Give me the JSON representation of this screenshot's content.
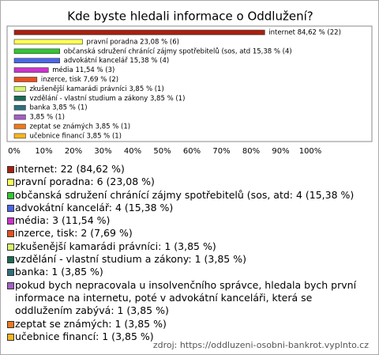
{
  "chart_data": {
    "type": "bar",
    "orientation": "horizontal",
    "title": "Kde byste hledali informace o Oddlužení?",
    "values": [
      84.62,
      23.08,
      15.38,
      15.38,
      11.54,
      7.69,
      3.85,
      3.85,
      3.85,
      3.85,
      3.85,
      3.85
    ],
    "value_labels": [
      "internet 84,62 % (22)",
      "pravní poradna 23,08 % (6)",
      "občanská sdružení chránící zájmy spotřebitelů (sos, atd 15,38 % (4)",
      "advokátní kancelář 15,38 % (4)",
      "média 11,54 % (3)",
      "inzerce, tisk 7,69 % (2)",
      "zkušenější kamarádi právníci 3,85 % (1)",
      "vzdělání - vlastní studium a zákony 3,85 % (1)",
      "banka 3,85 % (1)",
      "3,85 % (1)",
      "zeptat se známých 3,85 % (1)",
      "učebnice financí 3,85 % (1)"
    ],
    "colors": [
      "#a8210f",
      "#ffff55",
      "#33c633",
      "#4a66e8",
      "#cc33cc",
      "#e8501e",
      "#d6f56a",
      "#1a6b55",
      "#2f6f80",
      "#a45fc6",
      "#ee7a1e",
      "#f5b522"
    ],
    "legend_labels": [
      "internet: 22 (84,62 %)",
      "pravní poradna: 6 (23,08 %)",
      "občanská sdružení chránící zájmy spotřebitelů (sos, atd: 4 (15,38 %)",
      "advokátní kancelář: 4 (15,38 %)",
      "média: 3 (11,54 %)",
      "inzerce, tisk: 2 (7,69 %)",
      "zkušenější kamarádi právníci: 1 (3,85 %)",
      "vzdělání - vlastní studium a zákony: 1 (3,85 %)",
      "banka: 1 (3,85 %)",
      "pokud bych nepracovala u insolvenčního správce, hledala bych první informace na internetu, poté v advokátní kanceláři, která se oddlužením zabývá: 1 (3,85 %)",
      "zeptat se známých: 1 (3,85 %)",
      "učebnice financí: 1 (3,85 %)"
    ],
    "xlim": [
      0,
      120
    ],
    "xticks": [
      {
        "value": 0,
        "label": "0%"
      },
      {
        "value": 10,
        "label": "10%"
      },
      {
        "value": 20,
        "label": "20%"
      },
      {
        "value": 30,
        "label": "30%"
      },
      {
        "value": 40,
        "label": "40%"
      },
      {
        "value": 50,
        "label": "50%"
      },
      {
        "value": 60,
        "label": "60%"
      },
      {
        "value": 70,
        "label": "70%"
      },
      {
        "value": 80,
        "label": "80%"
      },
      {
        "value": 90,
        "label": "90%"
      },
      {
        "value": 100,
        "label": "100%"
      }
    ],
    "source": "zdroj: https://oddluzeni-osobni-bankrot.vyplnto.cz"
  }
}
